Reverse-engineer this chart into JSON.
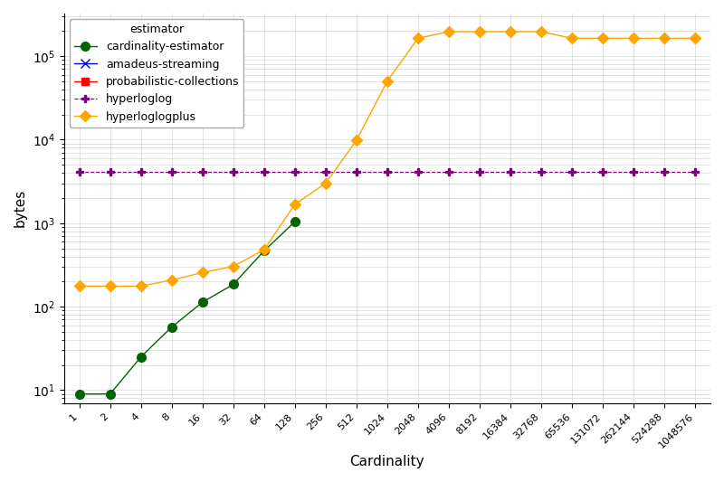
{
  "xlabel": "Cardinality",
  "ylabel": "bytes",
  "legend_title": "estimator",
  "background_color": "#ffffff",
  "grid_color": "#cccccc",
  "x_ticks": [
    1,
    2,
    4,
    8,
    16,
    32,
    64,
    128,
    256,
    512,
    1024,
    2048,
    4096,
    8192,
    16384,
    32768,
    65536,
    131072,
    262144,
    524288,
    1048576
  ],
  "series": [
    {
      "name": "cardinality-estimator",
      "color": "#006400",
      "marker": "o",
      "markersize": 7,
      "linestyle": "-",
      "linewidth": 1.0,
      "x": [
        1,
        2,
        4,
        8,
        16,
        32,
        64,
        128
      ],
      "y": [
        9,
        9,
        25,
        57,
        113,
        185,
        465,
        1041
      ]
    },
    {
      "name": "amadeus-streaming",
      "color": "#0000ff",
      "marker": "x",
      "markersize": 7,
      "linestyle": "-",
      "linewidth": 1.0,
      "x": [],
      "y": []
    },
    {
      "name": "probabilistic-collections",
      "color": "#ff0000",
      "marker": "s",
      "markersize": 6,
      "linestyle": "-",
      "linewidth": 1.0,
      "x": [],
      "y": []
    },
    {
      "name": "hyperloglog",
      "color": "#800080",
      "marker": "P",
      "markersize": 6,
      "linestyle": "--",
      "linewidth": 0.8,
      "x": [
        1,
        2,
        4,
        8,
        16,
        32,
        64,
        128,
        256,
        512,
        1024,
        2048,
        4096,
        8192,
        16384,
        32768,
        65536,
        131072,
        262144,
        524288,
        1048576
      ],
      "y": [
        4096,
        4096,
        4096,
        4096,
        4096,
        4096,
        4096,
        4096,
        4096,
        4096,
        4096,
        4096,
        4096,
        4096,
        4096,
        4096,
        4096,
        4096,
        4096,
        4096,
        4096
      ]
    },
    {
      "name": "hyperloglogplus",
      "color": "#ffa500",
      "marker": "D",
      "markersize": 6,
      "linestyle": "-",
      "linewidth": 1.0,
      "x": [
        1,
        2,
        4,
        8,
        16,
        32,
        64,
        128,
        256,
        512,
        1024,
        2048,
        4096,
        8192,
        16384,
        32768,
        65536,
        131072,
        262144,
        524288,
        1048576
      ],
      "y": [
        176,
        176,
        176,
        208,
        256,
        304,
        480,
        1680,
        3000,
        9800,
        50000,
        163840,
        196608,
        196608,
        196608,
        196608,
        163840,
        163840,
        163840,
        163840,
        163840
      ]
    }
  ]
}
